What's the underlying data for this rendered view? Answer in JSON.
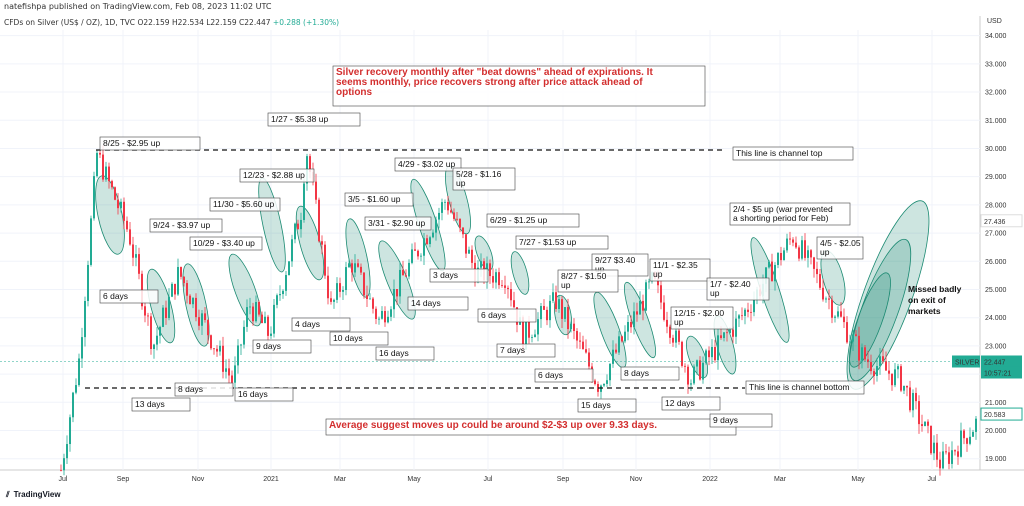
{
  "header": {
    "published": "natefishpa published on TradingView.com, Feb 08, 2023 11:02 UTC",
    "symbol": "CFDs on Silver (US$ / OZ), 1D, TVC",
    "ohlc": "O22.159 H22.534 L22.159 C22.447",
    "change": "+0.288 (+1.30%)"
  },
  "chart_data": {
    "type": "line",
    "title": "",
    "currency": "USD",
    "ylim": [
      18.6,
      34.2
    ],
    "y_ticks": [
      "34.000",
      "33.000",
      "32.000",
      "31.000",
      "30.000",
      "29.000",
      "28.000",
      "27.000",
      "26.000",
      "25.000",
      "24.000",
      "23.000",
      "22.000",
      "21.000",
      "20.000",
      "19.000"
    ],
    "x_ticks": [
      "Jul",
      "Sep",
      "Nov",
      "2021",
      "Mar",
      "May",
      "Jul",
      "Sep",
      "Nov",
      "2022",
      "Mar",
      "May",
      "Jul"
    ],
    "last_price_label": "SILVER",
    "last_price": "22.447",
    "countdown": "10:57:21",
    "marked_level": "27.436",
    "marked_level_2": "20.583",
    "series": [
      {
        "x": [
          "Jul 2020",
          "Aug 2020",
          "Aug 2020",
          "Sep 2020",
          "Sep 2020",
          "Oct 2020",
          "Nov 2020",
          "Nov 2020",
          "Dec 2020",
          "Jan 2021",
          "Feb 2021",
          "Mar 2021",
          "Mar 2021",
          "Apr 2021",
          "May 2021",
          "Jun 2021",
          "Jul 2021",
          "Aug 2021",
          "Sep 2021",
          "Sep 2021",
          "Nov 2021",
          "Dec 2021",
          "Jan 2022",
          "Mar 2022",
          "Apr 2022",
          "May 2022",
          "Jun 2022",
          "Jul 2022",
          "Aug 2022"
        ],
        "values": [
          18.6,
          22.5,
          29.8,
          27.0,
          23.0,
          25.6,
          21.7,
          24.5,
          23.4,
          27.8,
          30.1,
          24.3,
          26.0,
          23.9,
          28.2,
          25.6,
          25.5,
          23.3,
          24.6,
          21.6,
          25.3,
          21.8,
          24.0,
          26.9,
          24.5,
          22.6,
          21.8,
          18.8,
          20.3
        ]
      }
    ],
    "channel_top": 30.0,
    "channel_bottom": 21.7
  },
  "annotations": {
    "headline": [
      "Silver recovery monthly after \"beat downs\" ahead of expirations.  It",
      "seems monthly, price recovers strong after price attack ahead of",
      "options"
    ],
    "average": "Average suggest moves up could be around $2-$3 up over 9.33 days.",
    "channel_top": "This line is channel top",
    "channel_bottom": "This line is channel bottom",
    "missed": [
      "Missed badly",
      "on exit of",
      "markets"
    ],
    "war": [
      "2/4 - $5 up (war prevented",
      "a shorting period for Feb)"
    ],
    "moves": [
      "8/25 - $2.95 up",
      "1/27 - $5.38 up",
      "12/23 - $2.88 up",
      "11/30 - $5.60 up",
      "9/24 - $3.97 up",
      "10/29 - $3.40 up",
      "3/5 - $1.60 up",
      "3/31 - $2.90 up",
      "4/29 - $3.02 up",
      "5/28 - $1.16",
      "up",
      "6/29 - $1.25 up",
      "7/27 - $1.53 up",
      "9/27 $3.40",
      "up",
      "8/27 - $1.50",
      "up",
      "11/1 - $2.35",
      "up",
      "1/7 - $2.40",
      "up",
      "12/15 - $2.00",
      "up",
      "4/5 - $2.05",
      "up"
    ],
    "days": [
      "6 days",
      "13 days",
      "8 days",
      "16 days",
      "9 days",
      "4 days",
      "10 days",
      "16 days",
      "14 days",
      "3 days",
      "6 days",
      "7 days",
      "6 days",
      "15 days",
      "8 days",
      "12 days",
      "9 days"
    ]
  },
  "branding": {
    "logo": "TradingView"
  },
  "colors": {
    "up": "#22ab94",
    "down": "#f23645",
    "ellipse": "#1b8a72",
    "headline": "#d32f2f"
  }
}
